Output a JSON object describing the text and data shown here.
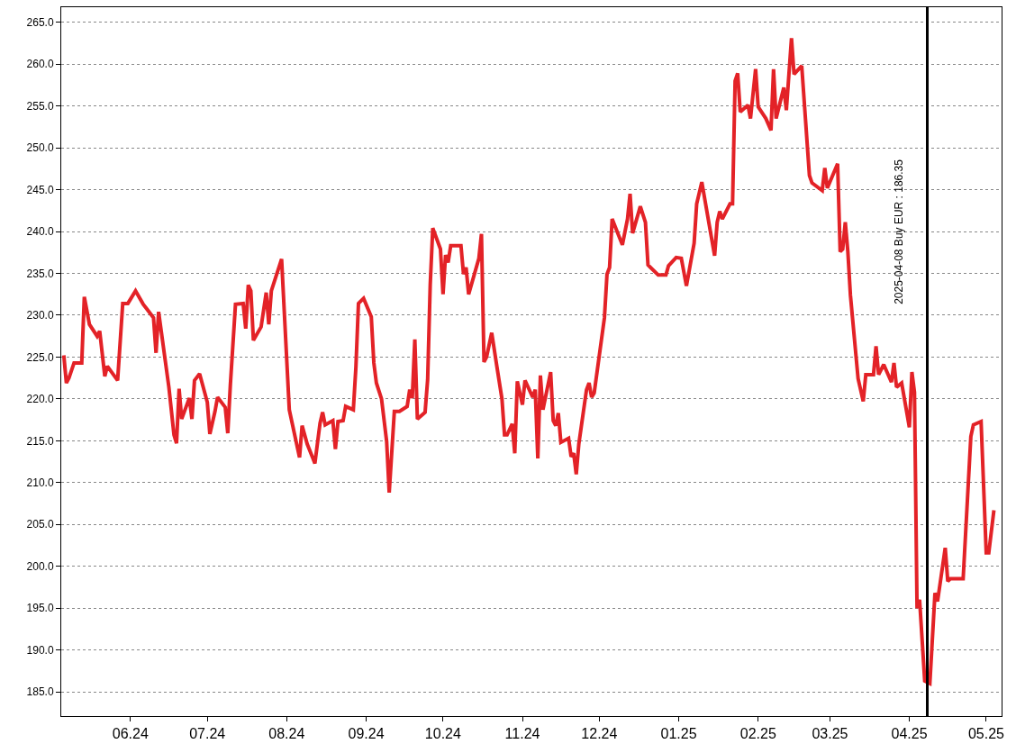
{
  "chart_data": {
    "type": "line",
    "x": [
      "2024-05-06",
      "2024-05-07",
      "2024-05-08",
      "2024-05-10",
      "2024-05-13",
      "2024-05-14",
      "2024-05-16",
      "2024-05-19",
      "2024-05-20",
      "2024-05-22",
      "2024-05-23",
      "2024-05-27",
      "2024-05-29",
      "2024-05-31",
      "2024-06-03",
      "2024-06-06",
      "2024-06-07",
      "2024-06-10",
      "2024-06-11",
      "2024-06-12",
      "2024-06-16",
      "2024-06-18",
      "2024-06-19",
      "2024-06-20",
      "2024-06-21",
      "2024-06-24",
      "2024-06-25",
      "2024-06-26",
      "2024-06-28",
      "2024-07-01",
      "2024-07-02",
      "2024-07-04",
      "2024-07-05",
      "2024-07-08",
      "2024-07-09",
      "2024-07-10",
      "2024-07-12",
      "2024-07-15",
      "2024-07-16",
      "2024-07-17",
      "2024-07-18",
      "2024-07-19",
      "2024-07-22",
      "2024-07-24",
      "2024-07-25",
      "2024-07-26",
      "2024-07-30",
      "2024-08-02",
      "2024-08-06",
      "2024-08-07",
      "2024-08-09",
      "2024-08-12",
      "2024-08-14",
      "2024-08-15",
      "2024-08-16",
      "2024-08-19",
      "2024-08-20",
      "2024-08-21",
      "2024-08-23",
      "2024-08-24",
      "2024-08-27",
      "2024-08-28",
      "2024-08-29",
      "2024-08-31",
      "2024-09-03",
      "2024-09-04",
      "2024-09-05",
      "2024-09-07",
      "2024-09-09",
      "2024-09-10",
      "2024-09-12",
      "2024-09-14",
      "2024-09-17",
      "2024-09-18",
      "2024-09-19",
      "2024-09-20",
      "2024-09-21",
      "2024-09-24",
      "2024-09-25",
      "2024-09-26",
      "2024-09-27",
      "2024-09-30",
      "2024-10-01",
      "2024-10-02",
      "2024-10-03",
      "2024-10-04",
      "2024-10-08",
      "2024-10-09",
      "2024-10-10",
      "2024-10-11",
      "2024-10-15",
      "2024-10-16",
      "2024-10-17",
      "2024-10-18",
      "2024-10-20",
      "2024-10-22",
      "2024-10-24",
      "2024-10-25",
      "2024-10-26",
      "2024-10-28",
      "2024-10-29",
      "2024-10-30",
      "2024-11-01",
      "2024-11-02",
      "2024-11-05",
      "2024-11-06",
      "2024-11-07",
      "2024-11-08",
      "2024-11-09",
      "2024-11-12",
      "2024-11-13",
      "2024-11-14",
      "2024-11-15",
      "2024-11-16",
      "2024-11-19",
      "2024-11-20",
      "2024-11-21",
      "2024-11-22",
      "2024-11-23",
      "2024-11-26",
      "2024-11-27",
      "2024-11-28",
      "2024-11-29",
      "2024-12-03",
      "2024-12-04",
      "2024-12-05",
      "2024-12-06",
      "2024-12-10",
      "2024-12-12",
      "2024-12-13",
      "2024-12-14",
      "2024-12-17",
      "2024-12-19",
      "2024-12-20",
      "2024-12-21",
      "2024-12-24",
      "2024-12-27",
      "2024-12-28",
      "2024-12-31",
      "2025-01-02",
      "2025-01-04",
      "2025-01-07",
      "2025-01-08",
      "2025-01-10",
      "2025-01-15",
      "2025-01-16",
      "2025-01-17",
      "2025-01-18",
      "2025-01-21",
      "2025-01-22",
      "2025-01-23",
      "2025-01-24",
      "2025-01-25",
      "2025-01-28",
      "2025-01-29",
      "2025-01-31",
      "2025-02-01",
      "2025-02-04",
      "2025-02-06",
      "2025-02-07",
      "2025-02-08",
      "2025-02-11",
      "2025-02-12",
      "2025-02-14",
      "2025-02-15",
      "2025-02-18",
      "2025-02-21",
      "2025-02-22",
      "2025-02-26",
      "2025-02-27",
      "2025-02-28",
      "2025-03-04",
      "2025-03-05",
      "2025-03-06",
      "2025-03-07",
      "2025-03-08",
      "2025-03-09",
      "2025-03-12",
      "2025-03-14",
      "2025-03-15",
      "2025-03-18",
      "2025-03-19",
      "2025-03-20",
      "2025-03-22",
      "2025-03-25",
      "2025-03-26",
      "2025-03-27",
      "2025-03-29",
      "2025-04-01",
      "2025-04-02",
      "2025-04-03",
      "2025-04-04",
      "2025-04-05",
      "2025-04-07",
      "2025-04-09",
      "2025-04-11",
      "2025-04-12",
      "2025-04-15",
      "2025-04-16",
      "2025-04-17",
      "2025-04-22",
      "2025-04-25",
      "2025-04-26",
      "2025-04-29",
      "2025-05-01",
      "2025-05-02",
      "2025-05-04"
    ],
    "series": [
      {
        "color": "#e32227",
        "values": [
          225.2,
          221.9,
          222.5,
          224.3,
          224.3,
          232.2,
          228.9,
          227.5,
          228.1,
          222.7,
          223.9,
          222.2,
          231.4,
          231.4,
          232.9,
          231.3,
          230.9,
          229.7,
          225.5,
          230.4,
          221.4,
          215.7,
          214.7,
          221.2,
          217.6,
          220.1,
          217.6,
          222.2,
          223.0,
          219.6,
          215.8,
          218.5,
          220.2,
          219.0,
          215.9,
          221.7,
          231.3,
          231.4,
          228.4,
          233.6,
          232.9,
          227.0,
          228.6,
          232.7,
          228.9,
          232.9,
          236.7,
          218.7,
          213.0,
          216.8,
          214.6,
          212.3,
          217.1,
          218.4,
          216.9,
          217.4,
          214.0,
          217.3,
          217.4,
          219.1,
          218.7,
          223.8,
          231.4,
          232.0,
          229.8,
          224.3,
          221.9,
          220.0,
          214.9,
          208.8,
          218.5,
          218.5,
          219.1,
          221.1,
          220.1,
          227.1,
          217.6,
          218.4,
          222.3,
          233.6,
          240.4,
          237.9,
          232.5,
          237.2,
          236.3,
          238.3,
          238.3,
          234.9,
          235.7,
          232.5,
          236.8,
          239.7,
          224.4,
          225.0,
          227.9,
          223.9,
          220.0,
          215.7,
          215.7,
          217.0,
          213.5,
          222.1,
          219.3,
          222.2,
          220.2,
          221.1,
          212.9,
          222.8,
          218.7,
          223.2,
          217.4,
          216.8,
          218.3,
          214.8,
          215.3,
          213.1,
          213.5,
          211.0,
          214.6,
          221.1,
          221.9,
          220.2,
          220.7,
          229.7,
          234.9,
          235.7,
          241.5,
          238.4,
          241.5,
          244.5,
          239.8,
          243.0,
          241.1,
          236.0,
          235.7,
          234.8,
          234.8,
          235.9,
          236.9,
          236.8,
          233.5,
          238.6,
          243.3,
          245.9,
          237.1,
          241.1,
          242.4,
          241.5,
          243.3,
          243.3,
          258.0,
          258.9,
          254.3,
          255.1,
          253.5,
          259.4,
          254.9,
          253.5,
          252.1,
          259.4,
          253.5,
          257.2,
          254.5,
          263.1,
          258.8,
          259.8,
          246.7,
          245.8,
          244.9,
          247.6,
          245.2,
          248.1,
          237.6,
          237.9,
          241.1,
          237.6,
          232.4,
          222.4,
          219.7,
          222.9,
          222.9,
          226.3,
          222.9,
          224.1,
          222.0,
          224.3,
          221.4,
          221.9,
          216.6,
          223.2,
          220.8,
          195.0,
          196.0,
          186.3,
          186.0,
          196.8,
          195.8,
          202.2,
          198.2,
          198.5,
          198.5,
          215.5,
          216.9,
          217.3,
          201.6,
          201.6,
          206.7
        ]
      }
    ],
    "xlim": [
      "2024-05-05",
      "2025-05-07"
    ],
    "xticks": [
      {
        "value": "2024-06-01",
        "label": "06.24"
      },
      {
        "value": "2024-07-01",
        "label": "07.24"
      },
      {
        "value": "2024-08-01",
        "label": "08.24"
      },
      {
        "value": "2024-09-01",
        "label": "09.24"
      },
      {
        "value": "2024-10-01",
        "label": "10.24"
      },
      {
        "value": "2024-11-01",
        "label": "11.24"
      },
      {
        "value": "2024-12-01",
        "label": "12.24"
      },
      {
        "value": "2025-01-01",
        "label": "01.25"
      },
      {
        "value": "2025-02-01",
        "label": "02.25"
      },
      {
        "value": "2025-03-01",
        "label": "03.25"
      },
      {
        "value": "2025-04-01",
        "label": "04.25"
      },
      {
        "value": "2025-05-01",
        "label": "05.25"
      }
    ],
    "ylim": [
      182.1,
      266.8
    ],
    "yticks": [
      {
        "value": 185,
        "label": "185.0"
      },
      {
        "value": 190,
        "label": "190.0"
      },
      {
        "value": 195,
        "label": "195.0"
      },
      {
        "value": 200,
        "label": "200.0"
      },
      {
        "value": 205,
        "label": "205.0"
      },
      {
        "value": 210,
        "label": "210.0"
      },
      {
        "value": 215,
        "label": "215.0"
      },
      {
        "value": 220,
        "label": "220.0"
      },
      {
        "value": 225,
        "label": "225.0"
      },
      {
        "value": 230,
        "label": "230.0"
      },
      {
        "value": 235,
        "label": "235.0"
      },
      {
        "value": 240,
        "label": "240.0"
      },
      {
        "value": 245,
        "label": "245.0"
      },
      {
        "value": 250,
        "label": "250.0"
      },
      {
        "value": 255,
        "label": "255.0"
      },
      {
        "value": 260,
        "label": "260.0"
      },
      {
        "value": 265,
        "label": "265.0"
      }
    ],
    "ref_lines": [
      {
        "axis": "x",
        "value": "2025-04-08",
        "label": "2025-04-08 Buy EUR : 186.35",
        "color": "#000000"
      }
    ],
    "grid": "y",
    "marker": "none",
    "line_style": "solid"
  }
}
